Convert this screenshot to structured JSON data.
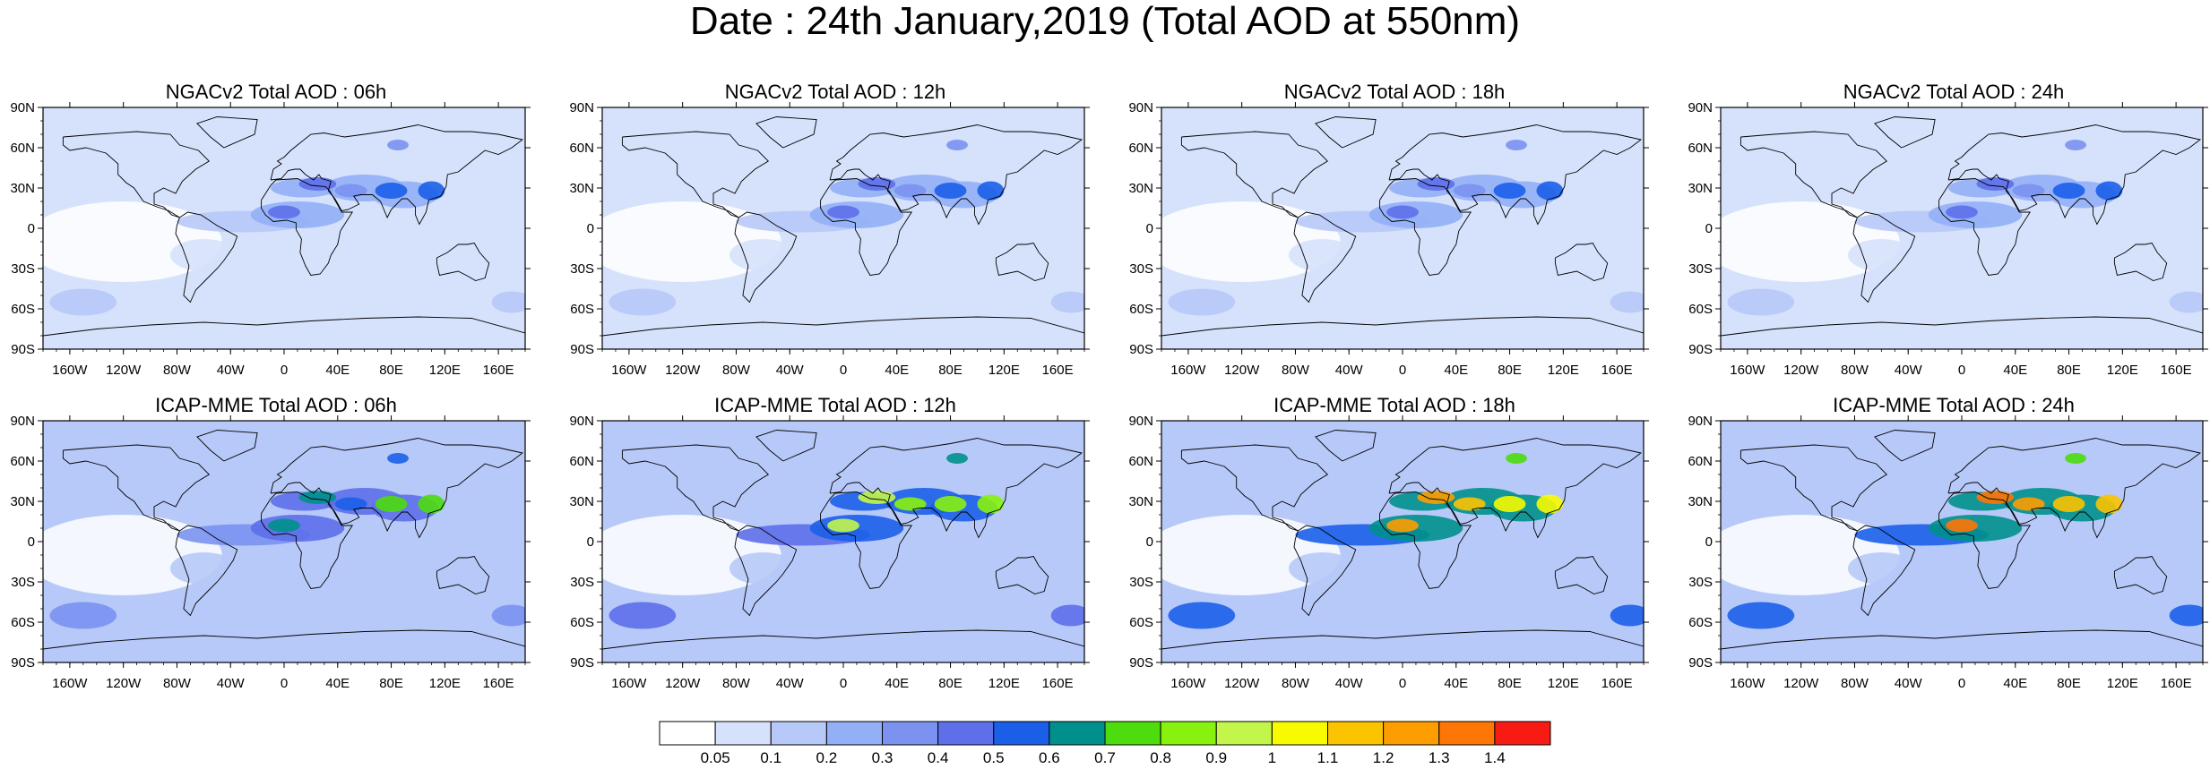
{
  "title": "Date : 24th January,2019 (Total AOD at 550nm)",
  "map_axes": {
    "lat_ticks": [
      "90N",
      "60N",
      "30N",
      "0",
      "30S",
      "60S",
      "90S"
    ],
    "lon_ticks": [
      "160W",
      "120W",
      "80W",
      "40W",
      "0",
      "40E",
      "80E",
      "120E",
      "160E"
    ],
    "lon_values": [
      -160,
      -120,
      -80,
      -40,
      0,
      40,
      80,
      120,
      160
    ],
    "lat_values": [
      90,
      60,
      30,
      0,
      -30,
      -60,
      -90
    ],
    "lon_range": [
      -180,
      180
    ],
    "lat_range": [
      -90,
      90
    ]
  },
  "panels": [
    {
      "title": "NGACv2 Total AOD : 06h",
      "model": "NGACv2",
      "hour": 6,
      "background_level": 1,
      "dust_level": 5,
      "asia_level": 6,
      "dust_belt_level": 3
    },
    {
      "title": "NGACv2 Total AOD : 12h",
      "model": "NGACv2",
      "hour": 12,
      "background_level": 1,
      "dust_level": 5,
      "asia_level": 6,
      "dust_belt_level": 3
    },
    {
      "title": "NGACv2 Total AOD : 18h",
      "model": "NGACv2",
      "hour": 18,
      "background_level": 1,
      "dust_level": 5,
      "asia_level": 6,
      "dust_belt_level": 3
    },
    {
      "title": "NGACv2 Total AOD : 24h",
      "model": "NGACv2",
      "hour": 24,
      "background_level": 1,
      "dust_level": 5,
      "asia_level": 6,
      "dust_belt_level": 3
    },
    {
      "title": "ICAP-MME Total AOD : 06h",
      "model": "ICAP-MME",
      "hour": 6,
      "background_level": 2,
      "dust_level": 7,
      "asia_level": 8,
      "dust_belt_level": 5
    },
    {
      "title": "ICAP-MME Total AOD : 12h",
      "model": "ICAP-MME",
      "hour": 12,
      "background_level": 2,
      "dust_level": 10,
      "asia_level": 9,
      "dust_belt_level": 6
    },
    {
      "title": "ICAP-MME Total AOD : 18h",
      "model": "ICAP-MME",
      "hour": 18,
      "background_level": 2,
      "dust_level": 13,
      "asia_level": 11,
      "dust_belt_level": 7
    },
    {
      "title": "ICAP-MME Total AOD : 24h",
      "model": "ICAP-MME",
      "hour": 24,
      "background_level": 2,
      "dust_level": 14,
      "asia_level": 12,
      "dust_belt_level": 7
    }
  ],
  "colorbar": {
    "labels": [
      "0.05",
      "0.1",
      "0.2",
      "0.3",
      "0.4",
      "0.5",
      "0.6",
      "0.7",
      "0.8",
      "0.9",
      "1",
      "1.1",
      "1.2",
      "1.3",
      "1.4"
    ],
    "colors": [
      "#ffffff",
      "#d6e2fb",
      "#b7c9f8",
      "#93b0f6",
      "#7b92f1",
      "#5d6fe9",
      "#1b5fe9",
      "#00908c",
      "#4ddc0d",
      "#88f20e",
      "#c3f64b",
      "#f8fb00",
      "#fcc301",
      "#fd9d00",
      "#fe7605",
      "#f81b14"
    ]
  }
}
